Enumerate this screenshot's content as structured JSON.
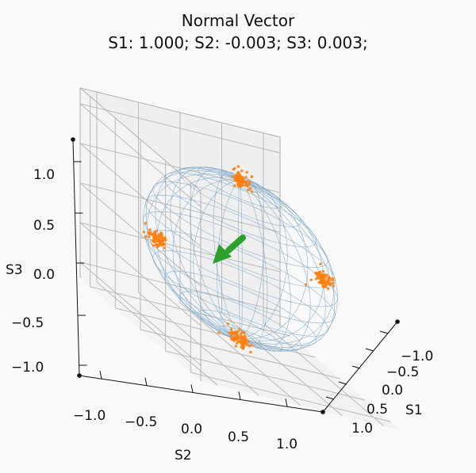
{
  "chart_data": {
    "type": "scatter-3d",
    "title_line1": "Normal Vector",
    "title_line2": "S1: 1.000; S2: -0.003; S3: 0.003;",
    "axes": {
      "S1": {
        "label": "S1",
        "range": [
          -1.2,
          1.2
        ],
        "ticks": [
          "−1.0",
          "−0.5",
          "0.0",
          "0.5",
          "1.0"
        ]
      },
      "S2": {
        "label": "S2",
        "range": [
          -1.2,
          1.2
        ],
        "ticks": [
          "−1.0",
          "−0.5",
          "0.0",
          "0.5",
          "1.0"
        ]
      },
      "S3": {
        "label": "S3",
        "range": [
          -1.2,
          1.2
        ],
        "ticks": [
          "−1.0",
          "−0.5",
          "0.0",
          "0.5",
          "1.0"
        ]
      }
    },
    "grid": true,
    "sphere": {
      "radius": 1.0,
      "style": "wireframe",
      "color": "#7aa6c8"
    },
    "normal_vector": [
      1.0,
      -0.003,
      0.003
    ],
    "vector_color": "#2ca02c",
    "point_color": "#ff7f0e",
    "clusters": [
      {
        "center": [
          0,
          0,
          1
        ],
        "count": 80
      },
      {
        "center": [
          0,
          0,
          -1
        ],
        "count": 80
      },
      {
        "center": [
          0,
          1,
          0
        ],
        "count": 80
      },
      {
        "center": [
          0,
          -1,
          0
        ],
        "count": 80
      }
    ]
  }
}
